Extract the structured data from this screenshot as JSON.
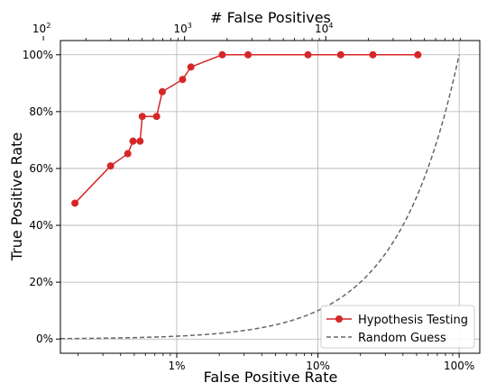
{
  "chart_data": {
    "type": "line",
    "title": "",
    "xlabel": "False Positive Rate",
    "ylabel": "True Positive Rate",
    "top_xlabel": "# False Positives",
    "x_scale": "log",
    "xlim": [
      0.0015,
      1.4
    ],
    "ylim": [
      -0.05,
      1.05
    ],
    "grid": true,
    "legend_position": "bottom-right",
    "x_ticks": [
      {
        "value": 0.01,
        "label": "1%"
      },
      {
        "value": 0.1,
        "label": "10%"
      },
      {
        "value": 1.0,
        "label": "100%"
      }
    ],
    "y_ticks": [
      {
        "value": 0.0,
        "label": "0%"
      },
      {
        "value": 0.2,
        "label": "20%"
      },
      {
        "value": 0.4,
        "label": "40%"
      },
      {
        "value": 0.6,
        "label": "60%"
      },
      {
        "value": 0.8,
        "label": "80%"
      },
      {
        "value": 1.0,
        "label": "100%"
      }
    ],
    "top_x_ticks": [
      {
        "value": 100,
        "label_base": "10",
        "label_exp": "2"
      },
      {
        "value": 1000,
        "label_base": "10",
        "label_exp": "3"
      },
      {
        "value": 10000,
        "label_base": "10",
        "label_exp": "4"
      }
    ],
    "top_axis_scale": 88000,
    "series": [
      {
        "name": "Hypothesis Testing",
        "color": "#d62728",
        "style": "solid",
        "marker": "circle",
        "x": [
          0.0019,
          0.0034,
          0.0045,
          0.0049,
          0.0055,
          0.0057,
          0.0072,
          0.0079,
          0.011,
          0.0126,
          0.021,
          0.032,
          0.085,
          0.145,
          0.245,
          0.51
        ],
        "y": [
          0.478,
          0.609,
          0.652,
          0.696,
          0.696,
          0.783,
          0.783,
          0.87,
          0.913,
          0.957,
          1.0,
          1.0,
          1.0,
          1.0,
          1.0,
          1.0
        ]
      },
      {
        "name": "Random Guess",
        "color": "#666666",
        "style": "dashed",
        "marker": "none",
        "function": "y = x"
      }
    ]
  }
}
